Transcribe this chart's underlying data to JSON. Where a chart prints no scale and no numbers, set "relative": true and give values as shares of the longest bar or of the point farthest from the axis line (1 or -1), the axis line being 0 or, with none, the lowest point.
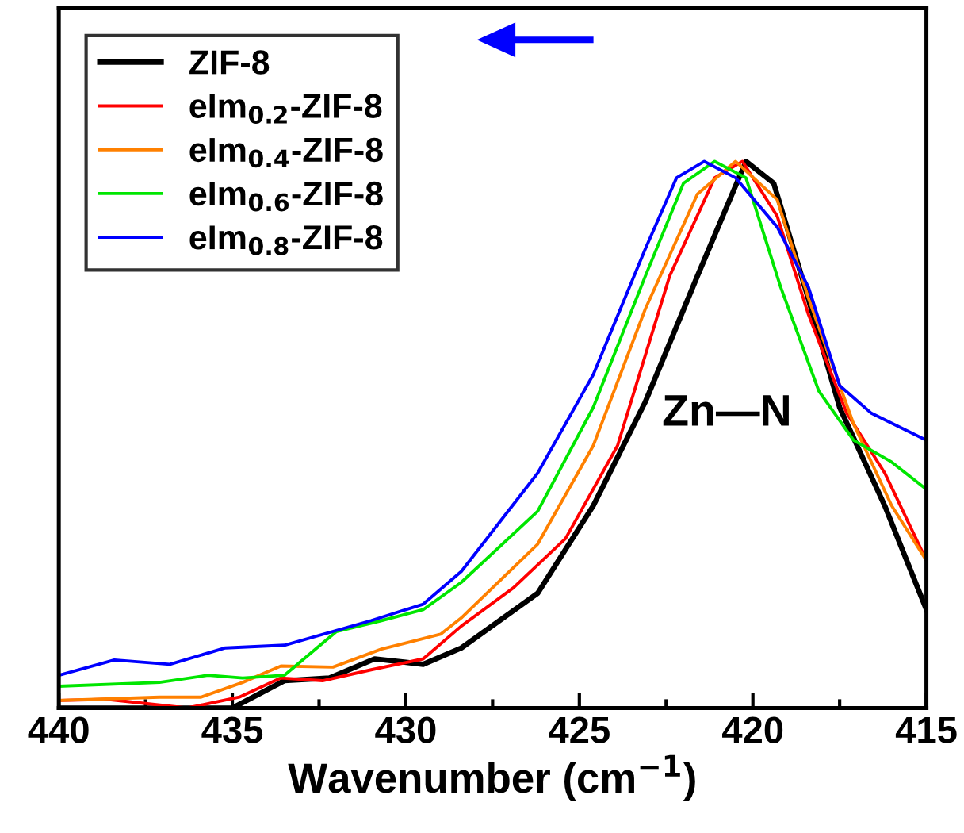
{
  "chart_data": {
    "type": "line",
    "relative": true,
    "xlabel": "Wavenumber (cm$^{−1}$)",
    "xlim": [
      440,
      415
    ],
    "xticks": [
      440,
      435,
      430,
      425,
      420,
      415
    ],
    "legend": "top left",
    "grid": false,
    "line_style": "solid",
    "annotations": [
      "Zn—N"
    ],
    "series": [
      {
        "name": "ZIF-8",
        "color": "#000000",
        "x": [
          440,
          438.6,
          436.3,
          435,
          433.5,
          432.2,
          430.9,
          429.5,
          428.4,
          426.2,
          424.6,
          423.1,
          421.6,
          420.2,
          419.4,
          418.5,
          417.5,
          416.2,
          415
        ],
        "values": [
          0.0,
          0.0,
          0.0,
          0.0,
          0.05,
          0.055,
          0.09,
          0.08,
          0.11,
          0.21,
          0.37,
          0.56,
          0.79,
          1.0,
          0.96,
          0.77,
          0.55,
          0.37,
          0.18
        ]
      },
      {
        "name": "eIm$_{0.2}$-ZIF-8",
        "color": "#ff0000",
        "x": [
          440,
          438.6,
          436.3,
          434.8,
          433.6,
          432.4,
          431,
          429.5,
          428.4,
          426.9,
          425.4,
          423.9,
          422.4,
          421.1,
          420.3,
          419.3,
          418.4,
          417.3,
          416.2,
          415
        ],
        "values": [
          0.014,
          0.016,
          0.0,
          0.02,
          0.055,
          0.05,
          0.07,
          0.09,
          0.15,
          0.22,
          0.31,
          0.48,
          0.79,
          0.97,
          1.0,
          0.9,
          0.72,
          0.54,
          0.43,
          0.27
        ]
      },
      {
        "name": "eIm$_{0.4}$-ZIF-8",
        "color": "#ff8000",
        "x": [
          440,
          437.1,
          435.9,
          434.7,
          433.6,
          432.1,
          430.7,
          429,
          428.4,
          426.2,
          424.6,
          423.1,
          421.6,
          420.5,
          419.3,
          418.4,
          417.1,
          416,
          415
        ],
        "values": [
          0.014,
          0.02,
          0.02,
          0.047,
          0.077,
          0.075,
          0.108,
          0.135,
          0.165,
          0.3,
          0.48,
          0.73,
          0.94,
          1.0,
          0.93,
          0.75,
          0.52,
          0.37,
          0.27
        ]
      },
      {
        "name": "eIm$_{0.6}$-ZIF-8",
        "color": "#00e600",
        "x": [
          440,
          437.1,
          435.7,
          434.7,
          433.5,
          432,
          430.7,
          429.5,
          428.4,
          426.2,
          424.6,
          423.1,
          422,
          421.1,
          420.2,
          419.2,
          418.1,
          417.1,
          416,
          415
        ],
        "values": [
          0.04,
          0.047,
          0.06,
          0.055,
          0.06,
          0.14,
          0.16,
          0.18,
          0.23,
          0.36,
          0.55,
          0.79,
          0.96,
          1.0,
          0.97,
          0.77,
          0.58,
          0.49,
          0.45,
          0.4
        ]
      },
      {
        "name": "eIm$_{0.8}$-ZIF-8",
        "color": "#0000ff",
        "x": [
          440,
          438.4,
          436.8,
          435.2,
          433.5,
          431,
          429.5,
          428.4,
          426.2,
          424.6,
          423.1,
          422.2,
          421.4,
          420.5,
          419.3,
          418.4,
          417.5,
          416.6,
          415
        ],
        "values": [
          0.06,
          0.088,
          0.08,
          0.11,
          0.115,
          0.16,
          0.19,
          0.25,
          0.43,
          0.61,
          0.84,
          0.97,
          1.0,
          0.97,
          0.88,
          0.77,
          0.59,
          0.54,
          0.49
        ]
      }
    ]
  }
}
